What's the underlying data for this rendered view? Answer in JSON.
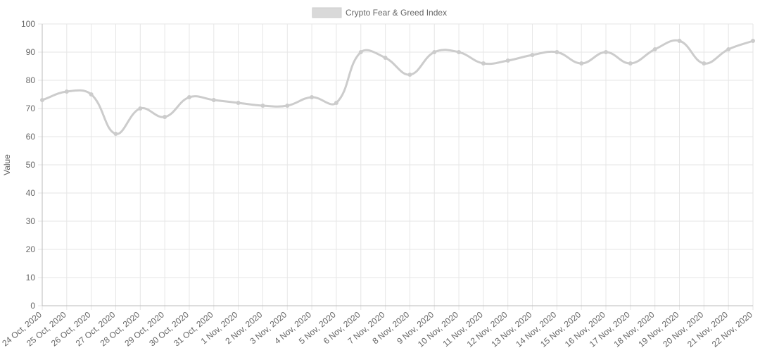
{
  "chart_data": {
    "type": "line",
    "y_label": "Value",
    "x": [
      "24 Oct, 2020",
      "25 Oct, 2020",
      "26 Oct, 2020",
      "27 Oct, 2020",
      "28 Oct, 2020",
      "29 Oct, 2020",
      "30 Oct, 2020",
      "31 Oct, 2020",
      "1 Nov, 2020",
      "2 Nov, 2020",
      "3 Nov, 2020",
      "4 Nov, 2020",
      "5 Nov, 2020",
      "6 Nov, 2020",
      "7 Nov, 2020",
      "8 Nov, 2020",
      "9 Nov, 2020",
      "10 Nov, 2020",
      "11 Nov, 2020",
      "12 Nov, 2020",
      "13 Nov, 2020",
      "14 Nov, 2020",
      "15 Nov, 2020",
      "16 Nov, 2020",
      "17 Nov, 2020",
      "18 Nov, 2020",
      "19 Nov, 2020",
      "20 Nov, 2020",
      "21 Nov, 2020",
      "22 Nov, 2020"
    ],
    "series": [
      {
        "name": "Crypto Fear & Greed Index",
        "color": "#cccccc",
        "values": [
          73,
          76,
          75,
          61,
          70,
          67,
          74,
          73,
          72,
          71,
          71,
          74,
          72,
          90,
          88,
          82,
          90,
          90,
          86,
          87,
          89,
          90,
          86,
          90,
          86,
          91,
          94,
          86,
          91,
          94
        ]
      }
    ],
    "ylim": [
      0,
      100
    ],
    "yticks": [
      0,
      10,
      20,
      30,
      40,
      50,
      60,
      70,
      80,
      90,
      100
    ],
    "grid": true,
    "legend": "top"
  }
}
